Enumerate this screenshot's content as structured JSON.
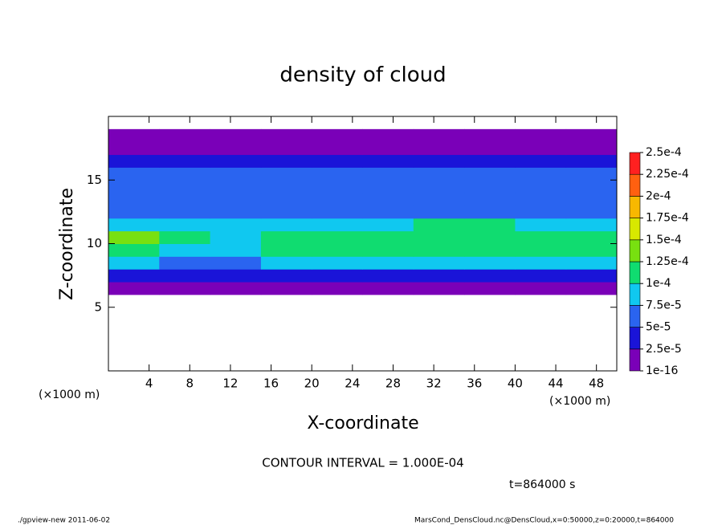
{
  "chart_data": {
    "type": "contour",
    "title": "density of cloud",
    "x_label": "X-coordinate",
    "y_label": "Z-coordinate",
    "x_unit": "(×1000 m)",
    "x_unit_right": "(×1000 m)",
    "contour_note": "CONTOUR INTERVAL = 1.000E-04",
    "time_note": "t=864000 s",
    "footer_left": "./gpview-new  2011-06-02",
    "footer_right": "MarsCond_DensCloud.nc@DensCloud,x=0:50000,z=0:20000,t=864000",
    "xlim": [
      0,
      50
    ],
    "ylim": [
      0,
      20
    ],
    "xticks": [
      4,
      8,
      12,
      16,
      20,
      24,
      28,
      32,
      36,
      40,
      44,
      48
    ],
    "yticks": [
      5,
      10,
      15
    ],
    "x": [
      2.5,
      7.5,
      12.5,
      17.5,
      22.5,
      27.5,
      32.5,
      37.5,
      42.5,
      47.5
    ],
    "y": [
      0.5,
      1.5,
      2.5,
      3.5,
      4.5,
      5.5,
      6.5,
      7.5,
      8.5,
      9.5,
      10.5,
      11.5,
      12.5,
      13.5,
      14.5,
      15.5,
      16.5,
      17.5,
      18.5,
      19.5
    ],
    "z": [
      [
        0,
        0,
        0,
        0,
        0,
        0,
        0,
        0,
        0,
        0
      ],
      [
        0,
        0,
        0,
        0,
        0,
        0,
        0,
        0,
        0,
        0
      ],
      [
        0,
        0,
        0,
        0,
        0,
        0,
        0,
        0,
        0,
        0
      ],
      [
        0,
        0,
        0,
        0,
        0,
        0,
        0,
        0,
        0,
        0
      ],
      [
        0,
        0,
        0,
        0,
        0,
        0,
        0,
        0,
        0,
        0
      ],
      [
        0,
        0,
        0,
        0,
        0,
        0,
        0,
        0,
        0,
        0
      ],
      [
        1e-06,
        1e-06,
        1e-06,
        1e-06,
        1e-06,
        1e-06,
        1e-06,
        1e-06,
        1e-06,
        1e-06
      ],
      [
        3e-05,
        3e-05,
        4e-05,
        3e-05,
        3e-05,
        3e-05,
        4e-05,
        3e-05,
        3e-05,
        3e-05
      ],
      [
        8e-05,
        7e-05,
        6e-05,
        8e-05,
        8e-05,
        8e-05,
        8e-05,
        8e-05,
        8e-05,
        8e-05
      ],
      [
        0.00012,
        9e-05,
        9e-05,
        0.00011,
        0.00011,
        0.000105,
        0.00011,
        0.00011,
        0.000105,
        0.000105
      ],
      [
        0.00013,
        0.00011,
        9e-05,
        0.000115,
        0.00012,
        0.00011,
        0.000115,
        0.000115,
        0.00011,
        0.00011
      ],
      [
        9e-05,
        8e-05,
        9e-05,
        9e-05,
        9e-05,
        8e-05,
        0.000105,
        0.000105,
        9e-05,
        9e-05
      ],
      [
        7e-05,
        7e-05,
        6e-05,
        6e-05,
        6e-05,
        6e-05,
        7e-05,
        7e-05,
        6e-05,
        6e-05
      ],
      [
        6e-05,
        6e-05,
        6e-05,
        6e-05,
        6e-05,
        6e-05,
        6e-05,
        6e-05,
        6e-05,
        6e-05
      ],
      [
        6e-05,
        5.5e-05,
        6e-05,
        5.5e-05,
        6e-05,
        5.5e-05,
        6e-05,
        6e-05,
        5.5e-05,
        6e-05
      ],
      [
        5.5e-05,
        5.5e-05,
        5.5e-05,
        5.5e-05,
        5.5e-05,
        5.5e-05,
        5.5e-05,
        5.5e-05,
        5.5e-05,
        5.5e-05
      ],
      [
        4e-05,
        4e-05,
        4e-05,
        4e-05,
        4e-05,
        4e-05,
        4e-05,
        4e-05,
        4e-05,
        4e-05
      ],
      [
        1e-05,
        1e-05,
        1e-05,
        1e-05,
        1e-05,
        1e-05,
        1e-05,
        1e-05,
        1e-05,
        1e-05
      ],
      [
        1e-06,
        1e-06,
        1e-06,
        1e-06,
        1e-06,
        1e-06,
        1e-06,
        1e-06,
        1e-06,
        1e-06
      ],
      [
        0,
        0,
        0,
        0,
        0,
        0,
        0,
        0,
        0,
        0
      ]
    ],
    "levels": [
      {
        "value": 1e-16,
        "label": "1e-16"
      },
      {
        "value": 2.5e-05,
        "label": "2.5e-5"
      },
      {
        "value": 5e-05,
        "label": "5e-5"
      },
      {
        "value": 7.5e-05,
        "label": "7.5e-5"
      },
      {
        "value": 0.0001,
        "label": "1e-4"
      },
      {
        "value": 0.000125,
        "label": "1.25e-4"
      },
      {
        "value": 0.00015,
        "label": "1.5e-4"
      },
      {
        "value": 0.000175,
        "label": "1.75e-4"
      },
      {
        "value": 0.0002,
        "label": "2e-4"
      },
      {
        "value": 0.000225,
        "label": "2.25e-4"
      },
      {
        "value": 0.00025,
        "label": "2.5e-4"
      }
    ],
    "colors": [
      "#7a00b8",
      "#1a14d8",
      "#2a64f0",
      "#10c8f0",
      "#10dc70",
      "#78e010",
      "#d8e800",
      "#f8b800",
      "#ff6010",
      "#ff2020"
    ]
  }
}
